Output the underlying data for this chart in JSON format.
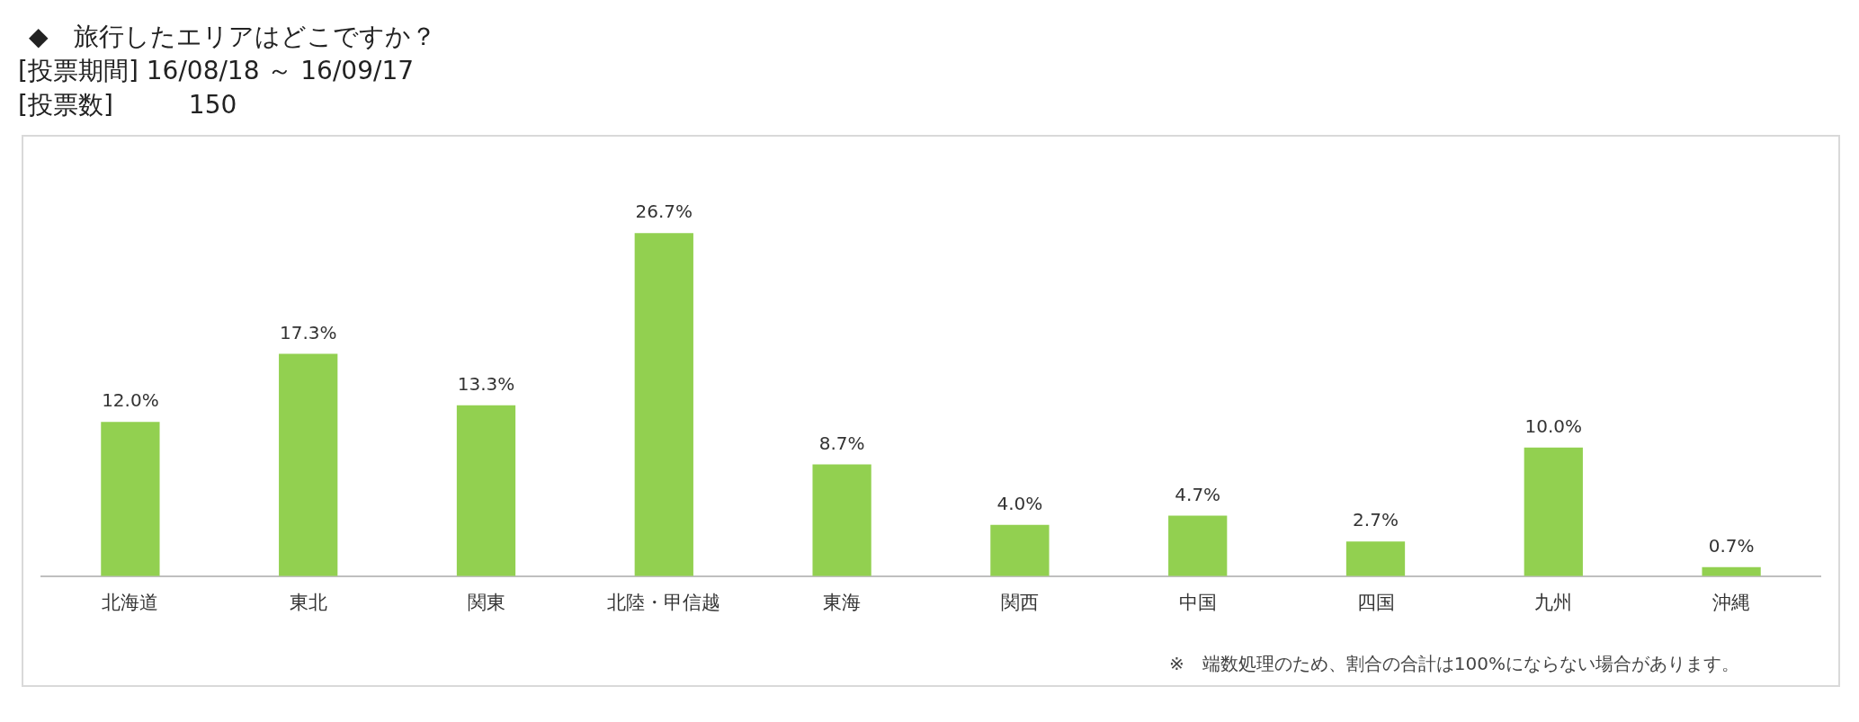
{
  "chart_data": {
    "type": "bar",
    "title": "◆　旅行したエリアはどこですか？",
    "subtitle": "[投票期間] 16/08/18 ～ 16/09/17",
    "annotations": [
      "[投票数]　　　150",
      "※　端数処理のため、割合の合計は100%にならない場合があります。"
    ],
    "categories": [
      "北海道",
      "東北",
      "関東",
      "北陸・甲信越",
      "東海",
      "関西",
      "中国",
      "四国",
      "九州",
      "沖縄"
    ],
    "values": [
      12.0,
      17.3,
      13.3,
      26.7,
      8.7,
      4.0,
      4.7,
      2.7,
      10.0,
      0.7
    ],
    "value_labels": [
      "12.0%",
      "17.3%",
      "13.3%",
      "26.7%",
      "8.7%",
      "4.0%",
      "4.7%",
      "2.7%",
      "10.0%",
      "0.7%"
    ],
    "color": "#92d050",
    "grid": false,
    "legend": false
  }
}
